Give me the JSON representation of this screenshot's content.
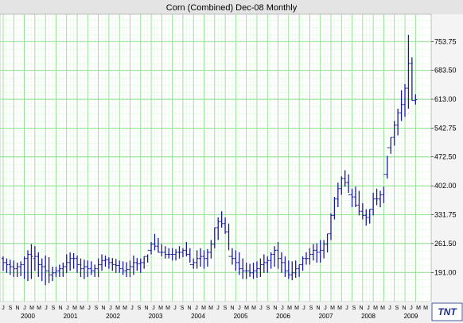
{
  "chart_data": {
    "type": "ohlc",
    "title": "Corn (Combined) Dec-08  Monthly",
    "ylim": [
      120,
      820
    ],
    "y_ticks": [
      "753.75",
      "683.50",
      "613.00",
      "542.75",
      "472.50",
      "402.00",
      "331.75",
      "261.50",
      "191.00"
    ],
    "year_labels": [
      "2000",
      "2001",
      "2002",
      "2003",
      "2004",
      "2005",
      "2006",
      "2007",
      "2008",
      "2009"
    ],
    "month_labels": [
      "J",
      "S",
      "N",
      "J",
      "M",
      "M",
      "J",
      "S",
      "N",
      "J",
      "M",
      "M",
      "J",
      "S",
      "N",
      "J",
      "M",
      "M",
      "J",
      "S",
      "N",
      "J",
      "M",
      "M",
      "J",
      "S",
      "N",
      "J",
      "M",
      "M",
      "J",
      "S",
      "N",
      "J",
      "M",
      "M",
      "J",
      "S",
      "N",
      "J",
      "M",
      "M",
      "J",
      "S",
      "N",
      "J",
      "M",
      "M",
      "J",
      "S",
      "N",
      "J",
      "M",
      "M",
      "J",
      "S",
      "N",
      "J",
      "M",
      "M"
    ],
    "grid": true,
    "series": [
      {
        "color": "#1a1a9e",
        "highs": [
          230,
          225,
          222,
          220,
          215,
          218,
          230,
          245,
          260,
          255,
          240,
          225,
          232,
          228,
          205,
          205,
          210,
          215,
          235,
          240,
          238,
          232,
          225,
          222,
          220,
          218,
          210,
          225,
          235,
          232,
          228,
          226,
          224,
          220,
          218,
          216,
          220,
          232,
          226,
          225,
          230,
          235,
          265,
          285,
          275,
          260,
          255,
          250,
          250,
          248,
          255,
          250,
          265,
          250,
          225,
          245,
          250,
          245,
          248,
          270,
          300,
          325,
          340,
          325,
          310,
          250,
          245,
          240,
          225,
          215,
          212,
          215,
          218,
          225,
          235,
          230,
          240,
          255,
          265,
          240,
          230,
          220,
          218,
          220,
          210,
          230,
          240,
          250,
          260,
          262,
          270,
          270,
          285,
          335,
          375,
          410,
          425,
          440,
          430,
          395,
          400,
          390,
          360,
          345,
          345,
          385,
          395,
          390,
          400,
          475,
          520,
          560,
          590,
          635,
          650,
          770,
          715,
          625
        ],
        "lows": [
          195,
          190,
          185,
          180,
          180,
          182,
          175,
          170,
          175,
          195,
          180,
          170,
          160,
          165,
          170,
          180,
          180,
          180,
          190,
          195,
          200,
          190,
          180,
          175,
          180,
          185,
          180,
          180,
          195,
          205,
          200,
          195,
          190,
          190,
          185,
          180,
          180,
          185,
          195,
          190,
          200,
          215,
          235,
          245,
          240,
          230,
          225,
          225,
          220,
          220,
          225,
          228,
          230,
          215,
          200,
          200,
          205,
          200,
          205,
          225,
          250,
          270,
          300,
          285,
          245,
          210,
          195,
          185,
          175,
          175,
          180,
          175,
          178,
          180,
          190,
          190,
          200,
          205,
          200,
          190,
          180,
          175,
          172,
          178,
          180,
          195,
          210,
          210,
          220,
          215,
          215,
          225,
          240,
          270,
          320,
          350,
          380,
          400,
          385,
          350,
          350,
          330,
          320,
          305,
          310,
          330,
          355,
          350,
          360,
          420,
          480,
          500,
          525,
          560,
          570,
          590,
          610,
          600
        ],
        "opens": [
          225,
          215,
          210,
          205,
          200,
          205,
          210,
          225,
          235,
          225,
          230,
          210,
          205,
          195,
          185,
          190,
          195,
          200,
          205,
          215,
          225,
          225,
          210,
          200,
          205,
          200,
          195,
          200,
          210,
          220,
          222,
          215,
          210,
          208,
          200,
          195,
          198,
          205,
          215,
          212,
          215,
          230,
          245,
          260,
          255,
          240,
          240,
          235,
          235,
          235,
          240,
          240,
          245,
          235,
          210,
          215,
          225,
          230,
          225,
          240,
          260,
          300,
          315,
          310,
          290,
          230,
          225,
          215,
          200,
          195,
          195,
          190,
          195,
          200,
          210,
          215,
          220,
          235,
          245,
          225,
          215,
          195,
          185,
          190,
          200,
          210,
          225,
          225,
          235,
          245,
          240,
          245,
          260,
          285,
          330,
          370,
          395,
          420,
          410,
          380,
          375,
          355,
          340,
          330,
          325,
          345,
          370,
          370,
          380,
          430,
          495,
          520,
          550,
          580,
          600,
          640,
          700,
          610
        ],
        "closes": [
          215,
          210,
          205,
          200,
          205,
          210,
          225,
          235,
          230,
          230,
          210,
          205,
          195,
          185,
          190,
          195,
          200,
          205,
          215,
          225,
          225,
          210,
          200,
          205,
          200,
          195,
          200,
          210,
          220,
          222,
          215,
          210,
          208,
          200,
          195,
          198,
          205,
          215,
          212,
          215,
          230,
          245,
          260,
          255,
          240,
          240,
          235,
          235,
          235,
          240,
          240,
          245,
          235,
          210,
          215,
          225,
          230,
          225,
          240,
          260,
          300,
          315,
          310,
          290,
          230,
          225,
          215,
          200,
          195,
          195,
          190,
          195,
          200,
          210,
          215,
          220,
          235,
          245,
          225,
          215,
          195,
          185,
          190,
          200,
          210,
          225,
          225,
          235,
          245,
          240,
          245,
          260,
          285,
          330,
          370,
          395,
          420,
          410,
          380,
          375,
          355,
          340,
          330,
          325,
          345,
          370,
          370,
          380,
          430,
          495,
          520,
          550,
          580,
          600,
          640,
          700,
          610,
          612
        ]
      }
    ]
  }
}
